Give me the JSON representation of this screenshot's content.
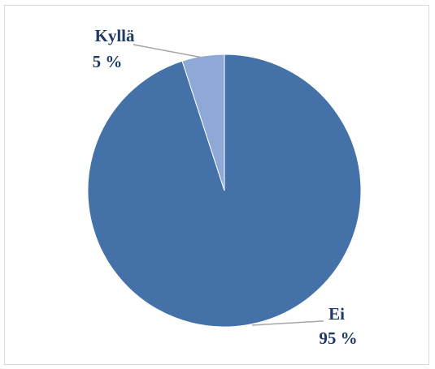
{
  "chart_data": {
    "type": "pie",
    "title": "",
    "slices": [
      {
        "category": "Ei",
        "value": 95,
        "label": "95 %",
        "color": "#4472a8"
      },
      {
        "category": "Kyllä",
        "value": 5,
        "label": "5 %",
        "color": "#8fa9d6"
      }
    ],
    "start_angle_deg": 0,
    "direction": "clockwise",
    "legend": "none",
    "label_color": "#1f3864",
    "leader_line_color": "#a6a6a6"
  }
}
